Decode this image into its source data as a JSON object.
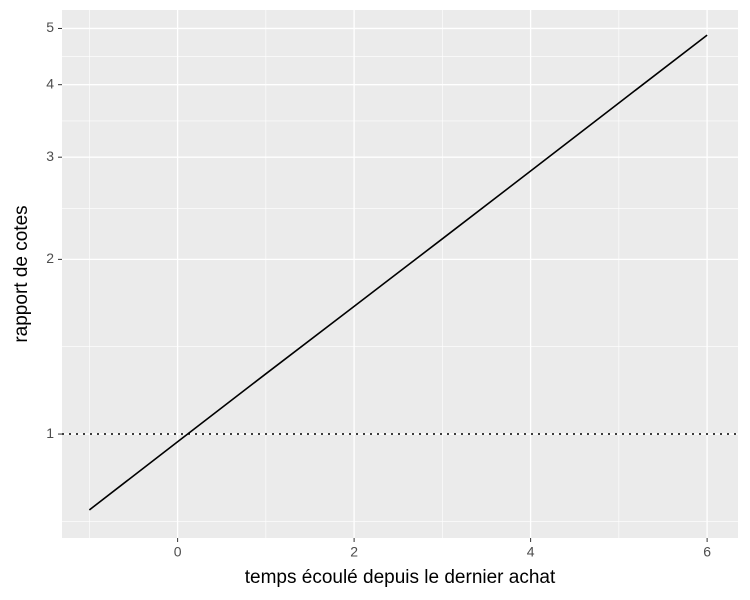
{
  "chart_data": {
    "type": "line",
    "x_label": "temps écoulé depuis le dernier achat",
    "y_label": "rapport de cotes",
    "x": [
      -1,
      0,
      1,
      2,
      3,
      4,
      5,
      6
    ],
    "series": [
      {
        "color": "#000000",
        "values": [
          0.74,
          0.97,
          1.27,
          1.66,
          2.17,
          2.84,
          3.72,
          4.87
        ]
      }
    ],
    "xlim": [
      -1.31,
      6.35
    ],
    "ylim": [
      0.662,
      5.38
    ],
    "xticks": [
      0,
      2,
      4,
      6
    ],
    "yticks": [
      1,
      2,
      3,
      4,
      5
    ],
    "y_log_scale": true,
    "grid": true,
    "hline": 1
  }
}
